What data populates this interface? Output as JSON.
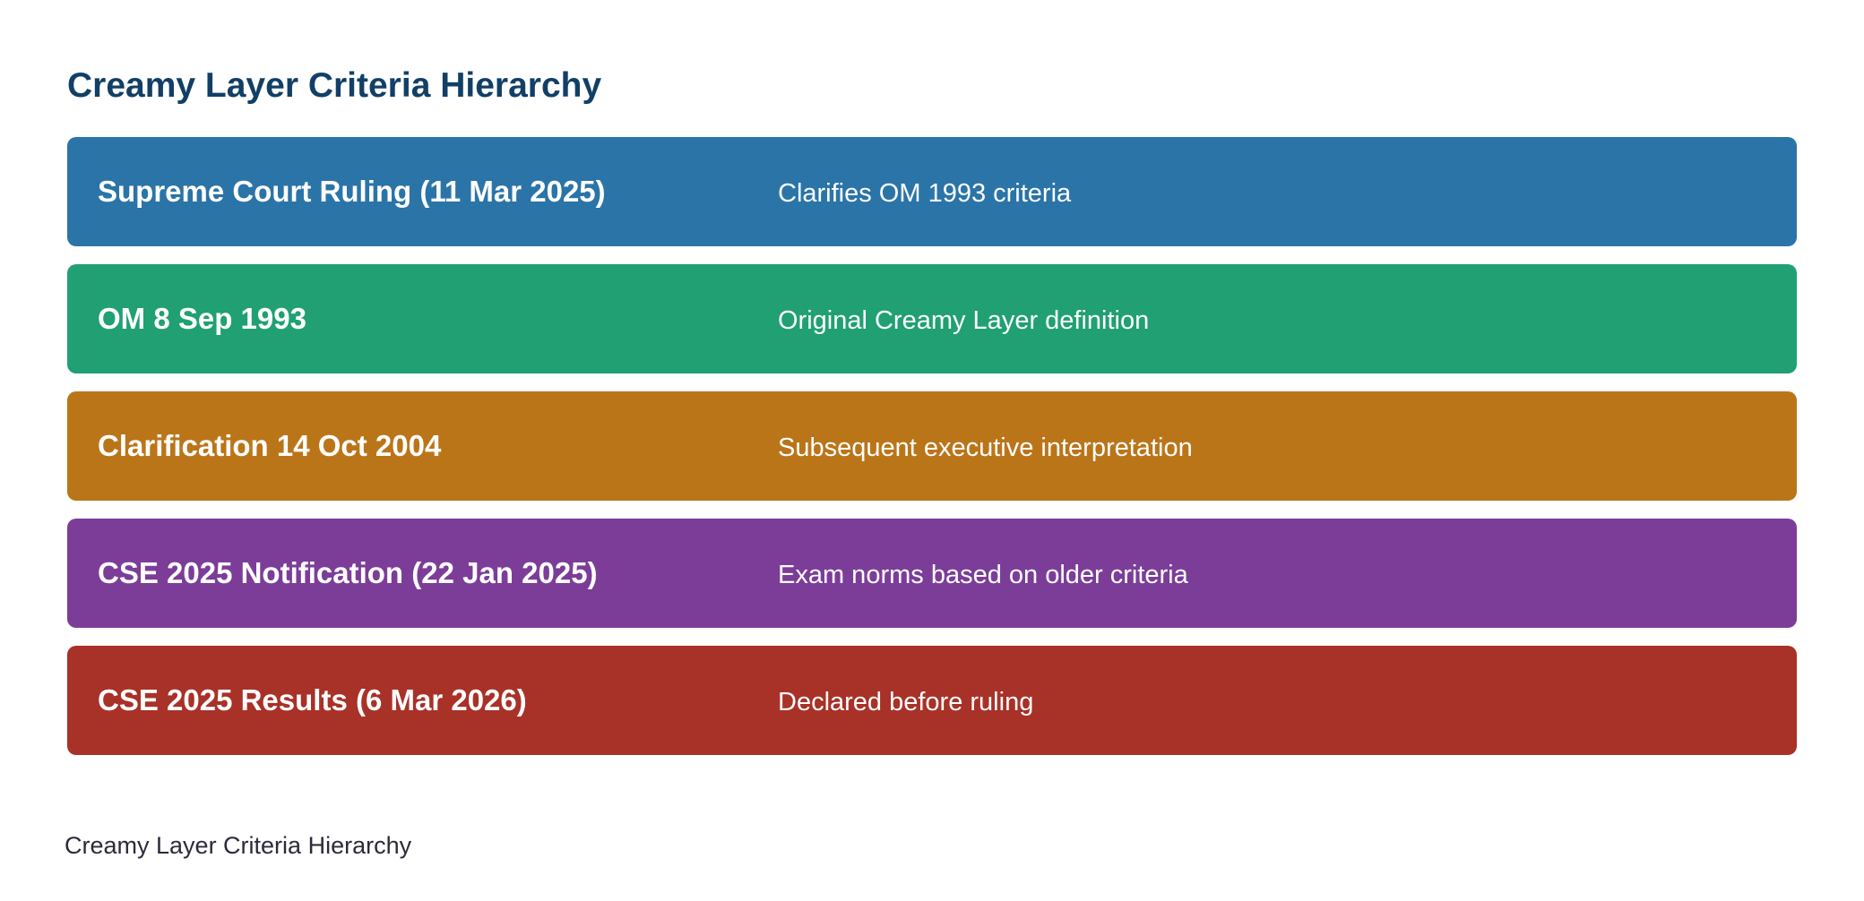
{
  "title": "Creamy Layer Criteria Hierarchy",
  "levels": [
    {
      "name": "Supreme Court Ruling (11 Mar 2025)",
      "description": "Clarifies OM 1993 criteria",
      "color": "#2a74a8"
    },
    {
      "name": "OM 8 Sep 1993",
      "description": "Original Creamy Layer definition",
      "color": "#20a073"
    },
    {
      "name": "Clarification 14 Oct 2004",
      "description": "Subsequent executive interpretation",
      "color": "#bb7519"
    },
    {
      "name": "CSE 2025 Notification (22 Jan 2025)",
      "description": "Exam norms based on older criteria",
      "color": "#7c3d98"
    },
    {
      "name": "CSE 2025 Results (6 Mar 2026)",
      "description": "Declared before ruling",
      "color": "#a83128"
    }
  ],
  "caption": "Creamy Layer Criteria Hierarchy"
}
